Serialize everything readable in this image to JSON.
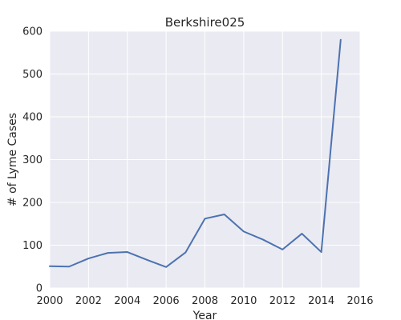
{
  "chart_data": {
    "type": "line",
    "title": "Berkshire025",
    "xlabel": "Year",
    "ylabel": "# of Lyme Cases",
    "xlim": [
      2000,
      2016
    ],
    "ylim": [
      0,
      600
    ],
    "x_ticks": [
      "2000",
      "2002",
      "2004",
      "2006",
      "2008",
      "2010",
      "2012",
      "2014",
      "2016"
    ],
    "y_ticks": [
      "0",
      "100",
      "200",
      "300",
      "400",
      "500",
      "600"
    ],
    "grid": true,
    "legend": "none",
    "background_color": "#EAEAF2",
    "grid_color": "#FFFFFF",
    "series": [
      {
        "color": "#4C72B0",
        "x": [
          2000,
          2001,
          2002,
          2003,
          2004,
          2005,
          2006,
          2007,
          2008,
          2009,
          2010,
          2011,
          2012,
          2013,
          2014,
          2015
        ],
        "y": [
          51,
          50,
          69,
          82,
          84,
          66,
          49,
          83,
          162,
          172,
          132,
          113,
          90,
          127,
          84,
          580
        ]
      }
    ]
  }
}
